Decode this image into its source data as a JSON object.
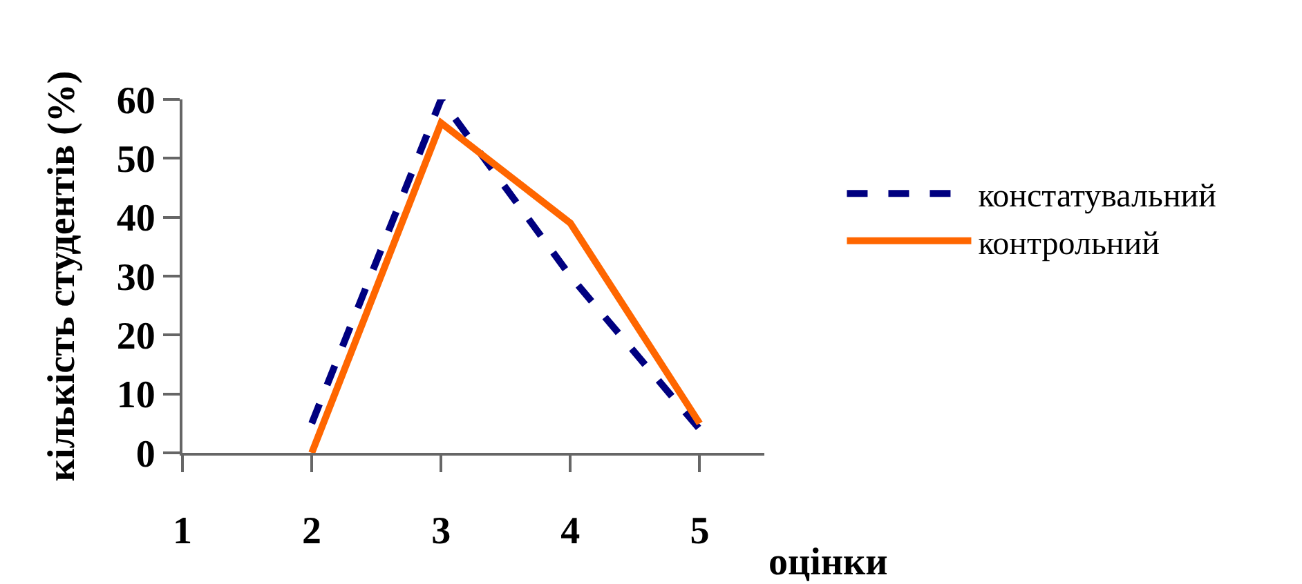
{
  "chart_data": {
    "type": "line",
    "xlabel": "оцінки",
    "ylabel": "кількість студентів (%)",
    "x": [
      2,
      3,
      4,
      5
    ],
    "xlim": [
      1,
      5.5
    ],
    "xticks": [
      1,
      2,
      3,
      4,
      5
    ],
    "ylim": [
      0,
      60
    ],
    "yticks": [
      0,
      10,
      20,
      30,
      40,
      50,
      60
    ],
    "series": [
      {
        "name": "констатувальний",
        "color": "#000080",
        "line_style": "dashed",
        "values": [
          5,
          60,
          30,
          4
        ]
      },
      {
        "name": "контрольний",
        "color": "#ff6600",
        "line_style": "solid",
        "values": [
          0,
          56,
          39,
          5
        ]
      }
    ],
    "legend": "right",
    "marker": "none"
  }
}
